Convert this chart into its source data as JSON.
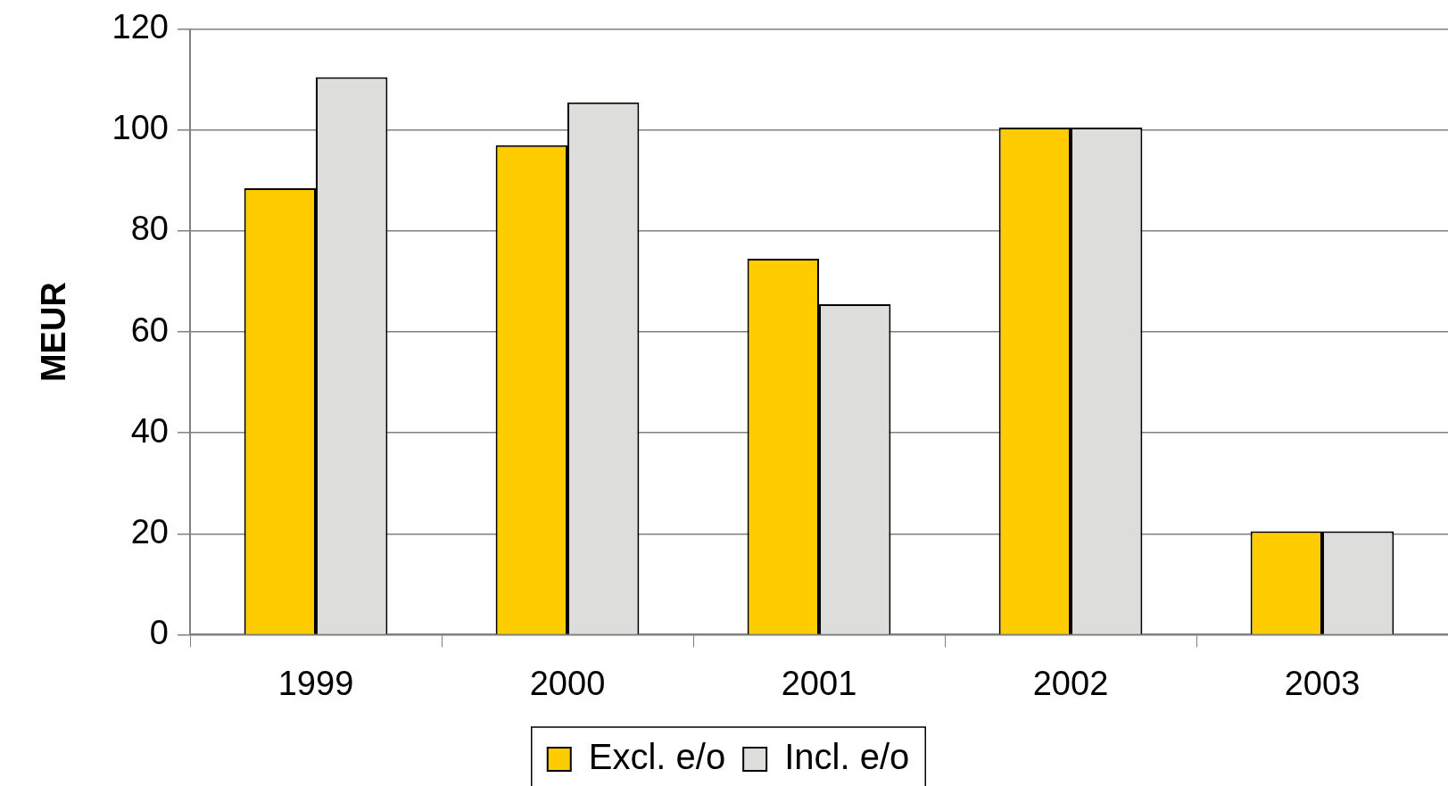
{
  "chart_data": {
    "type": "bar",
    "ylabel": "MEUR",
    "categories": [
      "1999",
      "2000",
      "2001",
      "2002",
      "2003"
    ],
    "series": [
      {
        "name": "Excl. e/o",
        "color": "#ffcc00",
        "values": [
          88.5,
          97,
          74.5,
          100.5,
          20.5
        ]
      },
      {
        "name": "Incl. e/o",
        "color": "#dddedb",
        "values": [
          110.5,
          105.5,
          65.5,
          100.5,
          20.5
        ]
      }
    ],
    "ylim": [
      0,
      120
    ],
    "yticks": [
      0,
      20,
      40,
      60,
      80,
      100,
      120
    ],
    "grid": "y",
    "legend": "bottom"
  }
}
